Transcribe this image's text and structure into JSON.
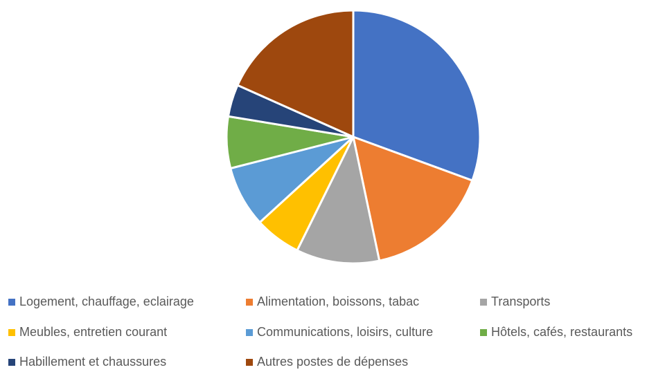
{
  "chart_data": {
    "type": "pie",
    "categories": [
      "Logement, chauffage, eclairage",
      "Alimentation, boissons, tabac",
      "Transports",
      "Meubles, entretien courant",
      "Communications, loisirs, culture",
      "Hôtels, cafés, restaurants",
      "Habillement et chaussures",
      "Autres postes de dépenses"
    ],
    "values": [
      30.6,
      16.1,
      10.6,
      5.9,
      7.8,
      6.6,
      4.1,
      18.3
    ],
    "colors": [
      "#4472c4",
      "#ed7d31",
      "#a5a5a5",
      "#ffc000",
      "#5b9bd5",
      "#70ad47",
      "#264478",
      "#9e480e"
    ],
    "legend": "bottom"
  }
}
